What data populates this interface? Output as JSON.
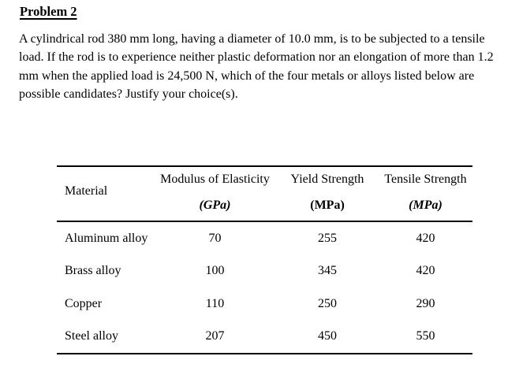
{
  "document": {
    "title": "Problem 2",
    "paragraph_lines": [
      "A cylindrical rod 380 mm long, having a diameter of 10.0 mm, is to be subjected to a tensile",
      "load. If the rod is to experience neither plastic deformation nor an elongation of more than 1.2",
      "mm when the applied load is 24,500 N, which of the four metals or alloys listed below are",
      "possible candidates? Justify your choice(s)."
    ]
  },
  "table": {
    "header": {
      "material": "Material",
      "modulus": {
        "name": "Modulus of Elasticity",
        "unit": "(GPa)"
      },
      "yield": {
        "name": "Yield Strength",
        "unit": "(MPa)"
      },
      "tensile": {
        "name": "Tensile Strength",
        "unit": "(MPa)"
      }
    },
    "rows": [
      {
        "material": "Aluminum alloy",
        "modulus": "70",
        "yield": "255",
        "tensile": "420"
      },
      {
        "material": "Brass alloy",
        "modulus": "100",
        "yield": "345",
        "tensile": "420"
      },
      {
        "material": "Copper",
        "modulus": "110",
        "yield": "250",
        "tensile": "290"
      },
      {
        "material": "Steel alloy",
        "modulus": "207",
        "yield": "450",
        "tensile": "550"
      }
    ]
  },
  "colors": {
    "text": "#000000",
    "background": "#ffffff"
  }
}
